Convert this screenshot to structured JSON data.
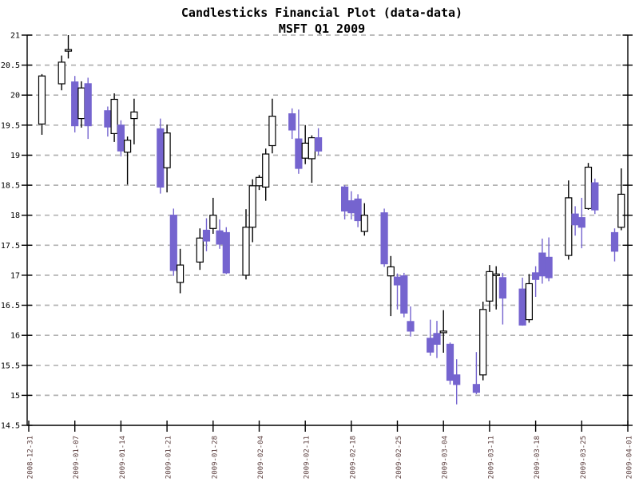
{
  "chart": {
    "colors": {
      "up_fill": "#ffffff",
      "up_stroke": "#000000",
      "down_fill": "#7564cf",
      "down_stroke": "#7564cf",
      "grid": "#b2b2b2",
      "axis": "#000000",
      "x_label_color": "#5a3d3d",
      "y_label_color": "#000000",
      "title_color": "#000000"
    }
  },
  "chart_data": {
    "type": "candlestick",
    "title": "Candlesticks Financial Plot (data-data)",
    "subtitle": "MSFT Q1 2009",
    "legend": "none",
    "grid": "horizontal dashed gridlines only",
    "x_axis": {
      "start": "2008-12-31",
      "end": "2009-04-01",
      "tick_interval_days": 7,
      "tick_labels": [
        "2008-12-31",
        "2009-01-07",
        "2009-01-14",
        "2009-01-21",
        "2009-01-28",
        "2009-02-04",
        "2009-02-11",
        "2009-02-18",
        "2009-02-25",
        "2009-03-04",
        "2009-03-11",
        "2009-03-18",
        "2009-03-25",
        "2009-04-01"
      ],
      "label_rotation_deg": -90
    },
    "y_axis": {
      "min": 14.5,
      "max": 21,
      "tick_step": 0.5,
      "tick_labels": [
        "21",
        "20.5",
        "20",
        "19.5",
        "19",
        "18.5",
        "18",
        "17.5",
        "17",
        "16.5",
        "16",
        "15.5",
        "15",
        "14.5"
      ]
    },
    "candles": [
      {
        "date": "2009-01-02",
        "open": 19.52,
        "high": 20.35,
        "low": 19.34,
        "close": 20.32
      },
      {
        "date": "2009-01-05",
        "open": 20.19,
        "high": 20.66,
        "low": 20.08,
        "close": 20.55
      },
      {
        "date": "2009-01-06",
        "open": 20.75,
        "high": 21.0,
        "low": 20.61,
        "close": 20.76
      },
      {
        "date": "2009-01-07",
        "open": 20.22,
        "high": 20.32,
        "low": 19.38,
        "close": 19.49
      },
      {
        "date": "2009-01-08",
        "open": 19.61,
        "high": 20.23,
        "low": 19.46,
        "close": 20.12
      },
      {
        "date": "2009-01-09",
        "open": 20.19,
        "high": 20.29,
        "low": 19.27,
        "close": 19.49
      },
      {
        "date": "2009-01-12",
        "open": 19.74,
        "high": 19.81,
        "low": 19.31,
        "close": 19.47
      },
      {
        "date": "2009-01-13",
        "open": 19.36,
        "high": 20.03,
        "low": 19.22,
        "close": 19.93
      },
      {
        "date": "2009-01-14",
        "open": 19.5,
        "high": 19.58,
        "low": 18.98,
        "close": 19.07
      },
      {
        "date": "2009-01-15",
        "open": 19.05,
        "high": 19.31,
        "low": 18.51,
        "close": 19.25
      },
      {
        "date": "2009-01-16",
        "open": 19.61,
        "high": 19.94,
        "low": 19.18,
        "close": 19.72
      },
      {
        "date": "2009-01-20",
        "open": 19.44,
        "high": 19.61,
        "low": 18.36,
        "close": 18.47
      },
      {
        "date": "2009-01-21",
        "open": 18.79,
        "high": 19.51,
        "low": 18.38,
        "close": 19.37
      },
      {
        "date": "2009-01-22",
        "open": 18.0,
        "high": 18.11,
        "low": 16.99,
        "close": 17.08
      },
      {
        "date": "2009-01-23",
        "open": 16.88,
        "high": 17.44,
        "low": 16.7,
        "close": 17.17
      },
      {
        "date": "2009-01-26",
        "open": 17.22,
        "high": 17.78,
        "low": 17.09,
        "close": 17.62
      },
      {
        "date": "2009-01-27",
        "open": 17.75,
        "high": 17.95,
        "low": 17.4,
        "close": 17.57
      },
      {
        "date": "2009-01-28",
        "open": 17.78,
        "high": 18.29,
        "low": 17.69,
        "close": 18.0
      },
      {
        "date": "2009-01-29",
        "open": 17.74,
        "high": 17.93,
        "low": 17.44,
        "close": 17.52
      },
      {
        "date": "2009-01-30",
        "open": 17.71,
        "high": 17.8,
        "low": 17.02,
        "close": 17.04
      },
      {
        "date": "2009-02-02",
        "open": 17.0,
        "high": 18.1,
        "low": 16.93,
        "close": 17.8
      },
      {
        "date": "2009-02-03",
        "open": 17.8,
        "high": 18.6,
        "low": 17.55,
        "close": 18.49
      },
      {
        "date": "2009-02-04",
        "open": 18.49,
        "high": 18.67,
        "low": 18.42,
        "close": 18.63
      },
      {
        "date": "2009-02-05",
        "open": 18.47,
        "high": 19.11,
        "low": 18.24,
        "close": 19.02
      },
      {
        "date": "2009-02-06",
        "open": 19.16,
        "high": 19.94,
        "low": 19.03,
        "close": 19.65
      },
      {
        "date": "2009-02-09",
        "open": 19.69,
        "high": 19.78,
        "low": 19.27,
        "close": 19.42
      },
      {
        "date": "2009-02-10",
        "open": 19.27,
        "high": 19.76,
        "low": 18.69,
        "close": 18.78
      },
      {
        "date": "2009-02-11",
        "open": 18.95,
        "high": 19.5,
        "low": 18.85,
        "close": 19.2
      },
      {
        "date": "2009-02-12",
        "open": 18.94,
        "high": 19.33,
        "low": 18.54,
        "close": 19.29
      },
      {
        "date": "2009-02-13",
        "open": 19.29,
        "high": 19.45,
        "low": 19.0,
        "close": 19.07
      },
      {
        "date": "2009-02-17",
        "open": 18.47,
        "high": 18.5,
        "low": 17.93,
        "close": 18.07
      },
      {
        "date": "2009-02-18",
        "open": 18.24,
        "high": 18.4,
        "low": 17.93,
        "close": 18.04
      },
      {
        "date": "2009-02-19",
        "open": 18.27,
        "high": 18.35,
        "low": 17.8,
        "close": 17.91
      },
      {
        "date": "2009-02-20",
        "open": 17.73,
        "high": 18.2,
        "low": 17.66,
        "close": 18.0
      },
      {
        "date": "2009-02-23",
        "open": 18.04,
        "high": 18.11,
        "low": 17.14,
        "close": 17.19
      },
      {
        "date": "2009-02-24",
        "open": 16.99,
        "high": 17.32,
        "low": 16.32,
        "close": 17.14
      },
      {
        "date": "2009-02-25",
        "open": 16.97,
        "high": 17.03,
        "low": 16.43,
        "close": 16.84
      },
      {
        "date": "2009-02-26",
        "open": 16.99,
        "high": 17.04,
        "low": 16.3,
        "close": 16.37
      },
      {
        "date": "2009-02-27",
        "open": 16.23,
        "high": 16.48,
        "low": 15.98,
        "close": 16.07
      },
      {
        "date": "2009-03-02",
        "open": 15.95,
        "high": 16.26,
        "low": 15.66,
        "close": 15.72
      },
      {
        "date": "2009-03-03",
        "open": 16.03,
        "high": 16.24,
        "low": 15.62,
        "close": 15.85
      },
      {
        "date": "2009-03-04",
        "open": 16.05,
        "high": 16.42,
        "low": 15.71,
        "close": 16.07
      },
      {
        "date": "2009-03-05",
        "open": 15.85,
        "high": 15.88,
        "low": 15.18,
        "close": 15.25
      },
      {
        "date": "2009-03-06",
        "open": 15.34,
        "high": 15.6,
        "low": 14.85,
        "close": 15.18
      },
      {
        "date": "2009-03-09",
        "open": 15.18,
        "high": 15.72,
        "low": 15.02,
        "close": 15.05
      },
      {
        "date": "2009-03-10",
        "open": 15.34,
        "high": 16.56,
        "low": 15.25,
        "close": 16.43
      },
      {
        "date": "2009-03-11",
        "open": 16.57,
        "high": 17.17,
        "low": 16.39,
        "close": 17.06
      },
      {
        "date": "2009-03-12",
        "open": 17.0,
        "high": 17.15,
        "low": 16.43,
        "close": 17.02
      },
      {
        "date": "2009-03-13",
        "open": 16.96,
        "high": 17.04,
        "low": 16.18,
        "close": 16.62
      },
      {
        "date": "2009-03-16",
        "open": 16.77,
        "high": 16.96,
        "low": 16.16,
        "close": 16.17
      },
      {
        "date": "2009-03-17",
        "open": 16.26,
        "high": 17.02,
        "low": 16.21,
        "close": 16.86
      },
      {
        "date": "2009-03-18",
        "open": 17.04,
        "high": 17.15,
        "low": 16.64,
        "close": 16.93
      },
      {
        "date": "2009-03-19",
        "open": 17.37,
        "high": 17.61,
        "low": 16.86,
        "close": 16.99
      },
      {
        "date": "2009-03-20",
        "open": 17.3,
        "high": 17.63,
        "low": 16.9,
        "close": 16.96
      },
      {
        "date": "2009-03-23",
        "open": 17.33,
        "high": 18.58,
        "low": 17.26,
        "close": 18.29
      },
      {
        "date": "2009-03-24",
        "open": 18.02,
        "high": 18.15,
        "low": 17.66,
        "close": 17.84
      },
      {
        "date": "2009-03-25",
        "open": 17.96,
        "high": 18.29,
        "low": 17.45,
        "close": 17.8
      },
      {
        "date": "2009-03-26",
        "open": 18.11,
        "high": 18.87,
        "low": 18.09,
        "close": 18.8
      },
      {
        "date": "2009-03-27",
        "open": 18.54,
        "high": 18.61,
        "low": 18.02,
        "close": 18.09
      },
      {
        "date": "2009-03-30",
        "open": 17.71,
        "high": 17.78,
        "low": 17.23,
        "close": 17.4
      },
      {
        "date": "2009-03-31",
        "open": 17.8,
        "high": 18.78,
        "low": 17.75,
        "close": 18.35
      }
    ]
  }
}
